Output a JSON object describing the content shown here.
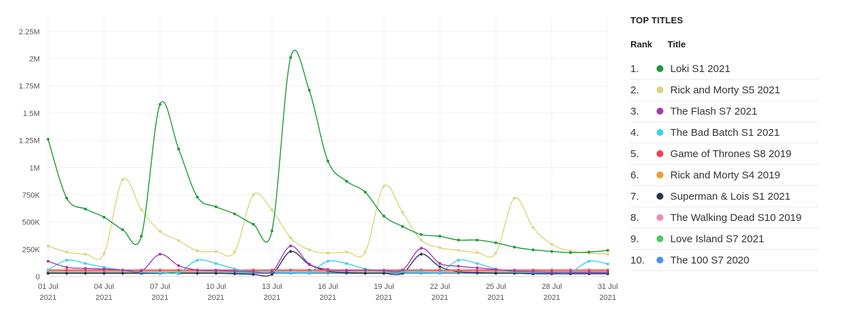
{
  "legend": {
    "heading": "TOP TITLES",
    "rank_header": "Rank",
    "title_header": "Title",
    "items": [
      {
        "rank": "1.",
        "title": "Loki S1 2021",
        "color": "#1a9a34"
      },
      {
        "rank": "2.",
        "title": "Rick and Morty S5 2021",
        "color": "#dcd57a"
      },
      {
        "rank": "3.",
        "title": "The Flash S7 2021",
        "color": "#a23bb0"
      },
      {
        "rank": "4.",
        "title": "The Bad Batch S1 2021",
        "color": "#3fd0f0"
      },
      {
        "rank": "5.",
        "title": "Game of Thrones S8 2019",
        "color": "#ef4155"
      },
      {
        "rank": "6.",
        "title": "Rick and Morty S4 2019",
        "color": "#f59a2e"
      },
      {
        "rank": "7.",
        "title": "Superman & Lois S1 2021",
        "color": "#2b3252"
      },
      {
        "rank": "8.",
        "title": "The Walking Dead S10 2019",
        "color": "#f08bb6"
      },
      {
        "rank": "9.",
        "title": "Love Island S7 2021",
        "color": "#4cc95a"
      },
      {
        "rank": "10.",
        "title": "The 100 S7 2020",
        "color": "#4f8ff0"
      }
    ]
  },
  "chart_data": {
    "type": "line",
    "title": "",
    "xlabel": "",
    "ylabel": "",
    "ylim": [
      0,
      2400000
    ],
    "y_ticks": [
      {
        "value": 0,
        "label": "0"
      },
      {
        "value": 250000,
        "label": "250K"
      },
      {
        "value": 500000,
        "label": "500K"
      },
      {
        "value": 750000,
        "label": "750K"
      },
      {
        "value": 1000000,
        "label": "1M"
      },
      {
        "value": 1250000,
        "label": "1.25M"
      },
      {
        "value": 1500000,
        "label": "1.5M"
      },
      {
        "value": 1750000,
        "label": "1.75M"
      },
      {
        "value": 2000000,
        "label": "2M"
      },
      {
        "value": 2250000,
        "label": "2.25M"
      }
    ],
    "x": [
      "2021-07-01",
      "2021-07-02",
      "2021-07-03",
      "2021-07-04",
      "2021-07-05",
      "2021-07-06",
      "2021-07-07",
      "2021-07-08",
      "2021-07-09",
      "2021-07-10",
      "2021-07-11",
      "2021-07-12",
      "2021-07-13",
      "2021-07-14",
      "2021-07-15",
      "2021-07-16",
      "2021-07-17",
      "2021-07-18",
      "2021-07-19",
      "2021-07-20",
      "2021-07-21",
      "2021-07-22",
      "2021-07-23",
      "2021-07-24",
      "2021-07-25",
      "2021-07-26",
      "2021-07-27",
      "2021-07-28",
      "2021-07-29",
      "2021-07-30",
      "2021-07-31"
    ],
    "x_ticks": [
      {
        "index": 0,
        "label": "01 Jul",
        "year": "2021"
      },
      {
        "index": 3,
        "label": "04 Jul",
        "year": "2021"
      },
      {
        "index": 6,
        "label": "07 Jul",
        "year": "2021"
      },
      {
        "index": 9,
        "label": "10 Jul",
        "year": "2021"
      },
      {
        "index": 12,
        "label": "13 Jul",
        "year": "2021"
      },
      {
        "index": 15,
        "label": "16 Jul",
        "year": "2021"
      },
      {
        "index": 18,
        "label": "19 Jul",
        "year": "2021"
      },
      {
        "index": 21,
        "label": "22 Jul",
        "year": "2021"
      },
      {
        "index": 24,
        "label": "25 Jul",
        "year": "2021"
      },
      {
        "index": 27,
        "label": "28 Jul",
        "year": "2021"
      },
      {
        "index": 30,
        "label": "31 Jul",
        "year": "2021"
      }
    ],
    "grid": true,
    "legend_position": "right",
    "series": [
      {
        "name": "Loki S1 2021",
        "color": "#1a9a34",
        "values": [
          1260000,
          720000,
          620000,
          545000,
          430000,
          370000,
          1580000,
          1170000,
          730000,
          640000,
          575000,
          480000,
          420000,
          2010000,
          1710000,
          1060000,
          875000,
          775000,
          555000,
          460000,
          385000,
          370000,
          335000,
          335000,
          310000,
          270000,
          245000,
          230000,
          220000,
          225000,
          240000
        ]
      },
      {
        "name": "Rick and Morty S5 2021",
        "color": "#dcd57a",
        "values": [
          280000,
          225000,
          205000,
          210000,
          890000,
          615000,
          415000,
          330000,
          235000,
          230000,
          225000,
          750000,
          610000,
          355000,
          245000,
          215000,
          225000,
          225000,
          830000,
          590000,
          335000,
          265000,
          240000,
          220000,
          215000,
          720000,
          450000,
          295000,
          235000,
          215000,
          205000
        ]
      },
      {
        "name": "The Flash S7 2021",
        "color": "#a23bb0",
        "values": [
          140000,
          85000,
          75000,
          70000,
          60000,
          50000,
          205000,
          100000,
          60000,
          55000,
          50000,
          45000,
          45000,
          280000,
          115000,
          65000,
          55000,
          60000,
          55000,
          60000,
          260000,
          120000,
          95000,
          80000,
          65000,
          50000,
          45000,
          40000,
          40000,
          40000,
          40000
        ]
      },
      {
        "name": "The Bad Batch S1 2021",
        "color": "#3fd0f0",
        "values": [
          60000,
          150000,
          120000,
          85000,
          60000,
          40000,
          35000,
          35000,
          150000,
          120000,
          70000,
          45000,
          45000,
          40000,
          40000,
          140000,
          120000,
          70000,
          55000,
          45000,
          45000,
          40000,
          150000,
          120000,
          70000,
          45000,
          40000,
          40000,
          40000,
          140000,
          115000
        ]
      },
      {
        "name": "Game of Thrones S8 2019",
        "color": "#ef4155",
        "values": [
          60000,
          60000,
          60000,
          60000,
          60000,
          60000,
          60000,
          60000,
          60000,
          60000,
          60000,
          60000,
          60000,
          60000,
          60000,
          60000,
          60000,
          60000,
          60000,
          60000,
          60000,
          60000,
          60000,
          60000,
          60000,
          60000,
          60000,
          60000,
          60000,
          60000,
          60000
        ]
      },
      {
        "name": "Rick and Morty S4 2019",
        "color": "#f59a2e",
        "values": [
          55000,
          55000,
          55000,
          55000,
          55000,
          55000,
          55000,
          55000,
          55000,
          55000,
          55000,
          55000,
          55000,
          55000,
          55000,
          55000,
          55000,
          55000,
          55000,
          55000,
          55000,
          55000,
          55000,
          55000,
          55000,
          55000,
          55000,
          55000,
          55000,
          55000,
          55000
        ]
      },
      {
        "name": "Superman & Lois S1 2021",
        "color": "#2b3252",
        "values": [
          30000,
          30000,
          30000,
          30000,
          30000,
          30000,
          30000,
          30000,
          30000,
          30000,
          25000,
          20000,
          20000,
          230000,
          110000,
          50000,
          35000,
          30000,
          30000,
          30000,
          205000,
          90000,
          45000,
          35000,
          30000,
          30000,
          25000,
          25000,
          25000,
          25000,
          25000
        ]
      },
      {
        "name": "The Walking Dead S10 2019",
        "color": "#f08bb6",
        "values": [
          45000,
          45000,
          45000,
          45000,
          45000,
          45000,
          45000,
          45000,
          45000,
          45000,
          45000,
          45000,
          45000,
          45000,
          45000,
          45000,
          45000,
          45000,
          45000,
          45000,
          45000,
          45000,
          45000,
          45000,
          45000,
          45000,
          45000,
          45000,
          45000,
          45000,
          45000
        ]
      },
      {
        "name": "Love Island S7 2021",
        "color": "#4cc95a",
        "values": [
          40000,
          40000,
          40000,
          40000,
          40000,
          40000,
          40000,
          40000,
          40000,
          40000,
          40000,
          40000,
          40000,
          40000,
          40000,
          40000,
          40000,
          40000,
          40000,
          40000,
          40000,
          40000,
          40000,
          40000,
          40000,
          40000,
          40000,
          40000,
          40000,
          40000,
          40000
        ]
      },
      {
        "name": "The 100 S7 2020",
        "color": "#4f8ff0",
        "values": [
          30000,
          30000,
          30000,
          30000,
          30000,
          30000,
          30000,
          30000,
          30000,
          30000,
          30000,
          30000,
          30000,
          30000,
          30000,
          30000,
          30000,
          30000,
          30000,
          30000,
          30000,
          30000,
          30000,
          30000,
          30000,
          30000,
          30000,
          30000,
          30000,
          30000,
          30000
        ]
      }
    ]
  }
}
